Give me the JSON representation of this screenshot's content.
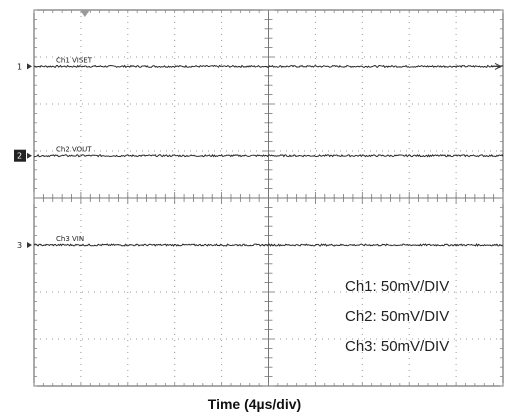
{
  "chart_data": {
    "type": "line",
    "xlabel": "Time (4µs/div)",
    "ylabel": "",
    "grid": true,
    "divisions": {
      "x": 10,
      "y": 8
    },
    "x_range_us": [
      0,
      40
    ],
    "y_range_div": [
      -4,
      4
    ],
    "series": [
      {
        "name": "Ch1 VISET",
        "marker": "1",
        "offset_div": 2.8,
        "highlighted": false,
        "x": [
          0,
          40
        ],
        "values": [
          0,
          0
        ]
      },
      {
        "name": "Ch2 VOUT",
        "marker": "2",
        "offset_div": 0.9,
        "highlighted": true,
        "x": [
          0,
          40
        ],
        "values": [
          0,
          0
        ]
      },
      {
        "name": "Ch3 VIN",
        "marker": "3",
        "offset_div": -1.0,
        "highlighted": false,
        "x": [
          0,
          40
        ],
        "values": [
          0,
          0
        ]
      }
    ],
    "scales": [
      "Ch1:  50mV/DIV",
      "Ch2:  50mV/DIV",
      "Ch3:  50mV/DIV"
    ],
    "colors": {
      "trace": "#2a2a2a",
      "grid": "#9a9a9a",
      "frame": "#555555",
      "trigger": "#9a9a9a"
    }
  }
}
